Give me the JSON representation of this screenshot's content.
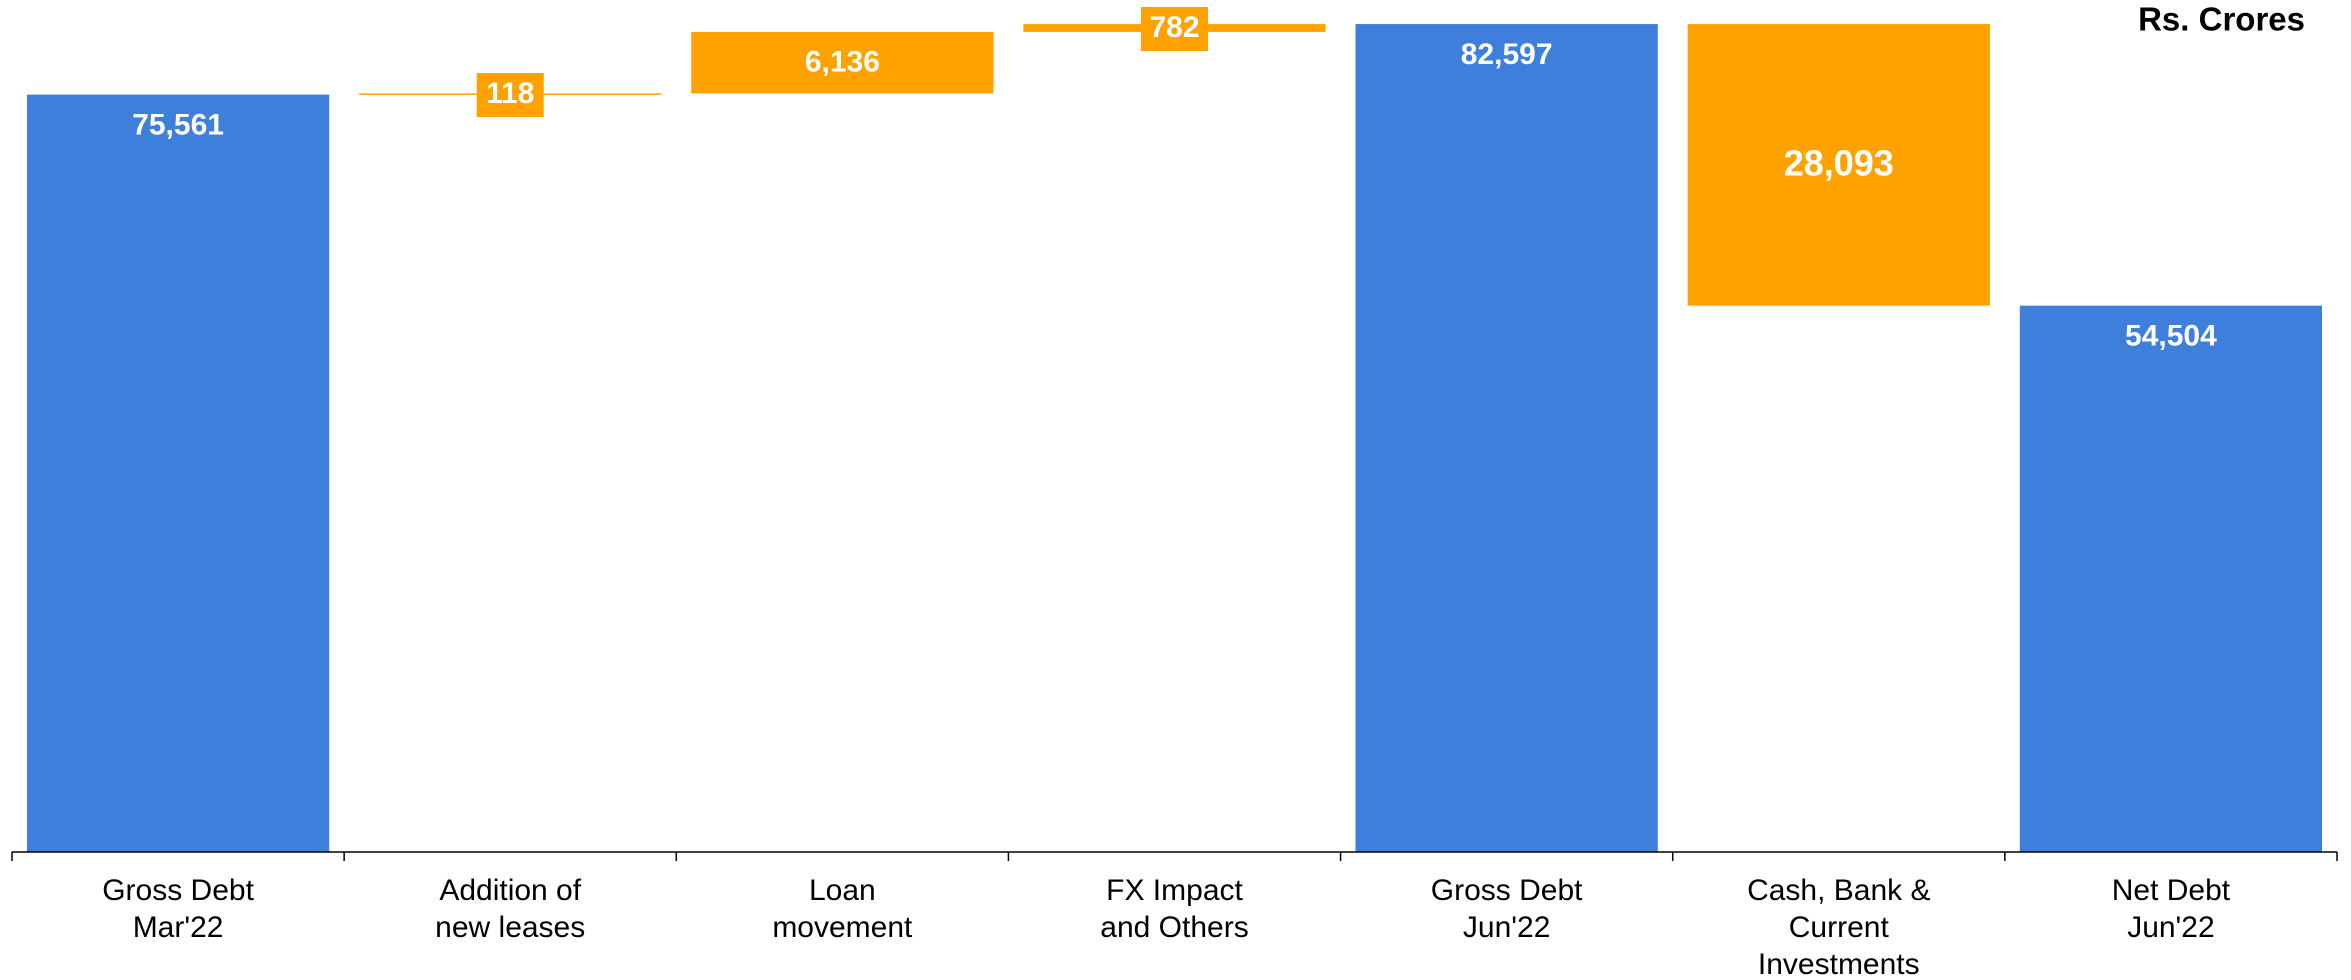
{
  "chart_data": {
    "type": "waterfall",
    "unit_label": "Rs. Crores",
    "categories": [
      "Gross Debt\nMar'22",
      "Addition of\nnew leases",
      "Loan\nmovement",
      "FX Impact\nand Others",
      "Gross Debt\nJun'22",
      "Cash, Bank &\nCurrent\nInvestments",
      "Net Debt\nJun'22"
    ],
    "values": [
      75561,
      118,
      6136,
      782,
      82597,
      -28093,
      54504
    ],
    "value_labels": [
      "75,561",
      "118",
      "6,136",
      "782",
      "82,597",
      "28,093",
      "54,504"
    ],
    "is_total": [
      true,
      false,
      false,
      false,
      true,
      false,
      true
    ],
    "total_color": "#3d7fdb",
    "change_color": "#ffa200",
    "ylim": [
      0,
      85000
    ]
  }
}
